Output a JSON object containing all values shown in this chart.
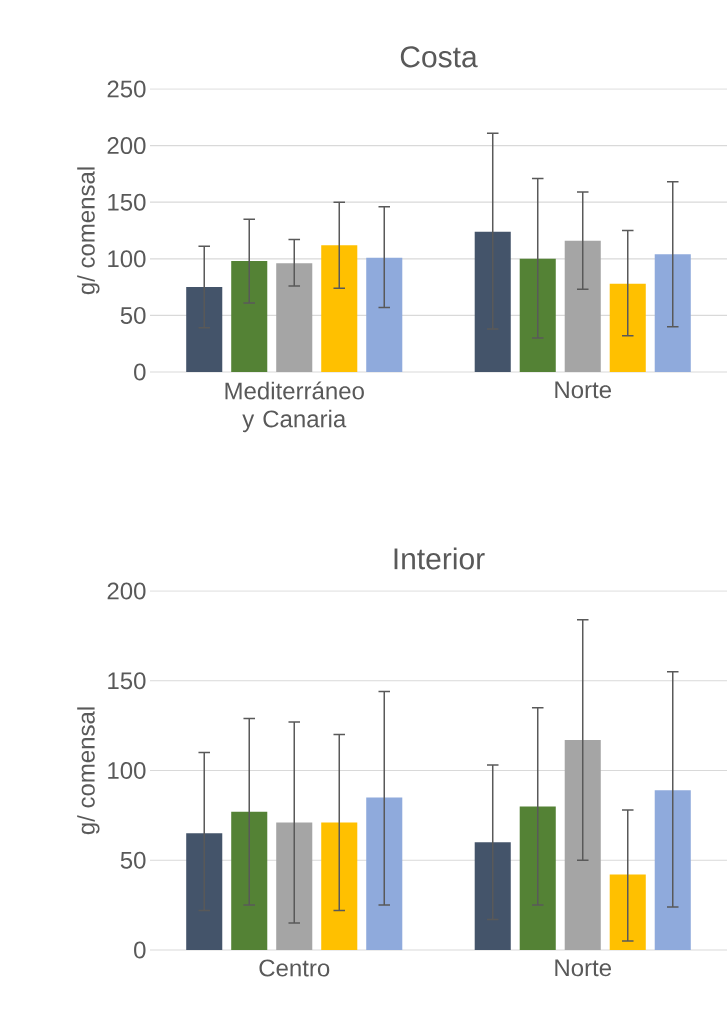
{
  "chart_data": [
    {
      "type": "bar",
      "title": "Costa",
      "ylabel": "g/ comensal",
      "categories": [
        "Mediterráneo y Canaria",
        "Norte"
      ],
      "ylim": [
        0,
        250
      ],
      "yticks": [
        0,
        50,
        100,
        150,
        200,
        250
      ],
      "grid": "y",
      "series": [
        {
          "color": "#44546a",
          "values": [
            75,
            124
          ],
          "errors": [
            [
              39,
              111
            ],
            [
              38,
              211
            ]
          ]
        },
        {
          "color": "#548235",
          "values": [
            98,
            100
          ],
          "errors": [
            [
              61,
              135
            ],
            [
              30,
              171
            ]
          ]
        },
        {
          "color": "#a5a5a5",
          "values": [
            96,
            116
          ],
          "errors": [
            [
              76,
              117
            ],
            [
              73,
              159
            ]
          ]
        },
        {
          "color": "#ffc000",
          "values": [
            112,
            78
          ],
          "errors": [
            [
              74,
              150
            ],
            [
              32,
              125
            ]
          ]
        },
        {
          "color": "#8faadc",
          "values": [
            101,
            104
          ],
          "errors": [
            [
              57,
              146
            ],
            [
              40,
              168
            ]
          ]
        }
      ]
    },
    {
      "type": "bar",
      "title": "Interior",
      "ylabel": "g/ comensal",
      "categories": [
        "Centro",
        "Norte"
      ],
      "ylim": [
        0,
        200
      ],
      "yticks": [
        0,
        50,
        100,
        150,
        200
      ],
      "grid": "y",
      "series": [
        {
          "color": "#44546a",
          "values": [
            65,
            60
          ],
          "errors": [
            [
              22,
              110
            ],
            [
              17,
              103
            ]
          ]
        },
        {
          "color": "#548235",
          "values": [
            77,
            80
          ],
          "errors": [
            [
              25,
              129
            ],
            [
              25,
              135
            ]
          ]
        },
        {
          "color": "#a5a5a5",
          "values": [
            71,
            117
          ],
          "errors": [
            [
              15,
              127
            ],
            [
              50,
              184
            ]
          ]
        },
        {
          "color": "#ffc000",
          "values": [
            71,
            42
          ],
          "errors": [
            [
              22,
              120
            ],
            [
              5,
              78
            ]
          ]
        },
        {
          "color": "#8faadc",
          "values": [
            85,
            89
          ],
          "errors": [
            [
              25,
              144
            ],
            [
              24,
              155
            ]
          ]
        }
      ]
    }
  ]
}
